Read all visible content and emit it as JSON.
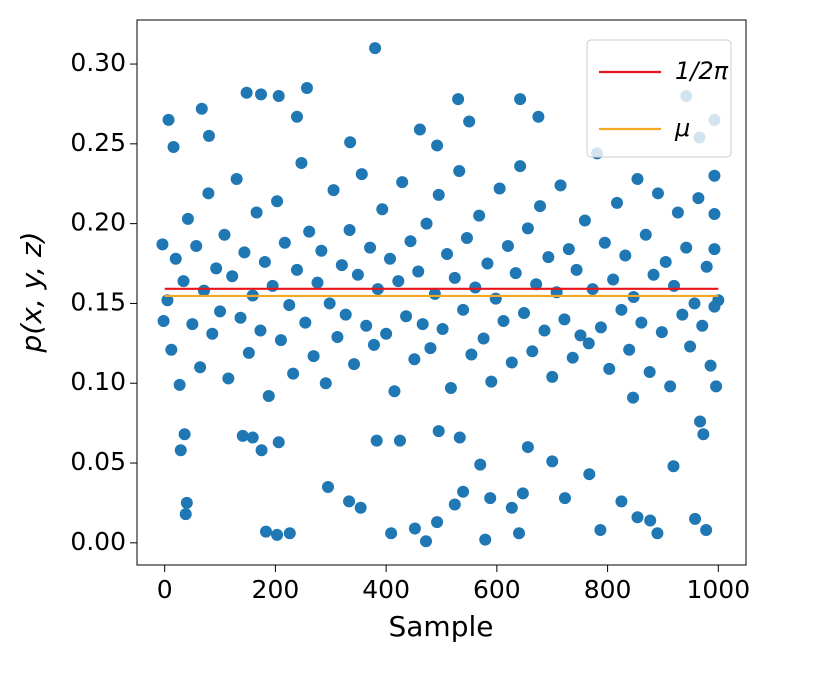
{
  "chart_data": {
    "type": "scatter",
    "xlabel": "Sample",
    "ylabel": "p(x, y, z)",
    "color": "#1f77b4",
    "xlim": [
      -50,
      1050
    ],
    "ylim": [
      -0.0139,
      0.3276
    ],
    "xticks": [
      0,
      200,
      400,
      600,
      800,
      1000
    ],
    "yticks": [
      {
        "value": 0,
        "label": "0.00"
      },
      {
        "value": 0.05,
        "label": "0.05"
      },
      {
        "value": 0.1,
        "label": "0.10"
      },
      {
        "value": 0.15,
        "label": "0.15"
      },
      {
        "value": 0.2,
        "label": "0.20"
      },
      {
        "value": 0.25,
        "label": "0.25"
      },
      {
        "value": 0.3,
        "label": "0.30"
      }
    ],
    "legend": "upper right",
    "hlines": [
      {
        "name": "1/2π",
        "color": "#e8141c",
        "y": 0.159155,
        "xrange": [
          0,
          1000
        ]
      },
      {
        "name": "μ",
        "color": "#f5a623",
        "y": 0.1547,
        "xrange": [
          0,
          1000
        ]
      }
    ],
    "x": [
      380,
      7,
      16,
      67,
      80,
      148,
      174,
      206,
      257,
      239,
      530,
      642,
      550,
      675,
      335,
      461,
      492,
      38,
      40,
      183,
      203,
      226,
      295,
      333,
      354,
      409,
      452,
      472,
      492,
      524,
      539,
      579,
      588,
      627,
      640,
      647,
      723,
      787,
      825,
      854,
      877,
      890,
      958,
      978,
      29,
      36,
      141,
      159,
      175,
      206,
      383,
      425,
      495,
      533,
      656,
      700,
      767,
      570,
      846,
      919,
      967,
      973,
      -2,
      -4,
      1000,
      996,
      993,
      993,
      993,
      993,
      942,
      966,
      5,
      12,
      20,
      27,
      34,
      42,
      50,
      57,
      64,
      71,
      79,
      86,
      93,
      100,
      108,
      115,
      122,
      130,
      137,
      144,
      152,
      159,
      166,
      173,
      181,
      188,
      195,
      203,
      210,
      217,
      225,
      232,
      239,
      247,
      254,
      261,
      269,
      276,
      283,
      291,
      298,
      305,
      312,
      320,
      327,
      334,
      342,
      349,
      356,
      364,
      371,
      378,
      385,
      393,
      400,
      407,
      415,
      422,
      429,
      436,
      444,
      451,
      458,
      466,
      473,
      480,
      488,
      495,
      502,
      510,
      517,
      524,
      532,
      539,
      546,
      554,
      561,
      568,
      576,
      583,
      590,
      598,
      605,
      612,
      620,
      627,
      634,
      642,
      649,
      656,
      664,
      671,
      678,
      686,
      693,
      700,
      708,
      715,
      722,
      730,
      737,
      744,
      751,
      759,
      766,
      773,
      781,
      788,
      795,
      803,
      810,
      817,
      825,
      832,
      839,
      847,
      854,
      861,
      869,
      876,
      883,
      891,
      898,
      905,
      913,
      920,
      927,
      935,
      942,
      949,
      957,
      964,
      971,
      979,
      986,
      993
    ],
    "values": [
      0.31,
      0.265,
      0.248,
      0.272,
      0.255,
      0.282,
      0.281,
      0.28,
      0.285,
      0.267,
      0.278,
      0.278,
      0.264,
      0.267,
      0.251,
      0.259,
      0.249,
      0.018,
      0.025,
      0.007,
      0.005,
      0.006,
      0.035,
      0.026,
      0.022,
      0.006,
      0.009,
      0.001,
      0.013,
      0.024,
      0.032,
      0.002,
      0.028,
      0.022,
      0.006,
      0.031,
      0.028,
      0.008,
      0.026,
      0.016,
      0.014,
      0.006,
      0.015,
      0.008,
      0.058,
      0.068,
      0.067,
      0.066,
      0.058,
      0.063,
      0.064,
      0.064,
      0.07,
      0.066,
      0.06,
      0.051,
      0.043,
      0.049,
      0.091,
      0.048,
      0.076,
      0.068,
      0.139,
      0.187,
      0.152,
      0.098,
      0.206,
      0.184,
      0.23,
      0.265,
      0.28,
      0.254,
      0.152,
      0.121,
      0.178,
      0.099,
      0.164,
      0.203,
      0.137,
      0.186,
      0.11,
      0.158,
      0.219,
      0.131,
      0.172,
      0.145,
      0.193,
      0.103,
      0.167,
      0.228,
      0.141,
      0.182,
      0.119,
      0.155,
      0.207,
      0.133,
      0.176,
      0.092,
      0.161,
      0.214,
      0.127,
      0.188,
      0.149,
      0.106,
      0.171,
      0.238,
      0.138,
      0.195,
      0.117,
      0.163,
      0.183,
      0.1,
      0.15,
      0.221,
      0.129,
      0.174,
      0.143,
      0.196,
      0.112,
      0.168,
      0.231,
      0.136,
      0.185,
      0.124,
      0.159,
      0.209,
      0.131,
      0.178,
      0.095,
      0.164,
      0.226,
      0.142,
      0.189,
      0.115,
      0.17,
      0.137,
      0.2,
      0.122,
      0.156,
      0.218,
      0.134,
      0.181,
      0.097,
      0.166,
      0.233,
      0.146,
      0.191,
      0.118,
      0.16,
      0.205,
      0.128,
      0.175,
      0.101,
      0.153,
      0.222,
      0.139,
      0.186,
      0.113,
      0.169,
      0.236,
      0.144,
      0.197,
      0.12,
      0.162,
      0.211,
      0.133,
      0.179,
      0.104,
      0.157,
      0.224,
      0.14,
      0.184,
      0.116,
      0.171,
      0.13,
      0.202,
      0.125,
      0.159,
      0.244,
      0.135,
      0.188,
      0.109,
      0.165,
      0.213,
      0.146,
      0.18,
      0.121,
      0.154,
      0.228,
      0.138,
      0.193,
      0.107,
      0.168,
      0.219,
      0.132,
      0.176,
      0.098,
      0.161,
      0.207,
      0.143,
      0.185,
      0.123,
      0.15,
      0.216,
      0.136,
      0.173,
      0.111,
      0.148
    ]
  }
}
